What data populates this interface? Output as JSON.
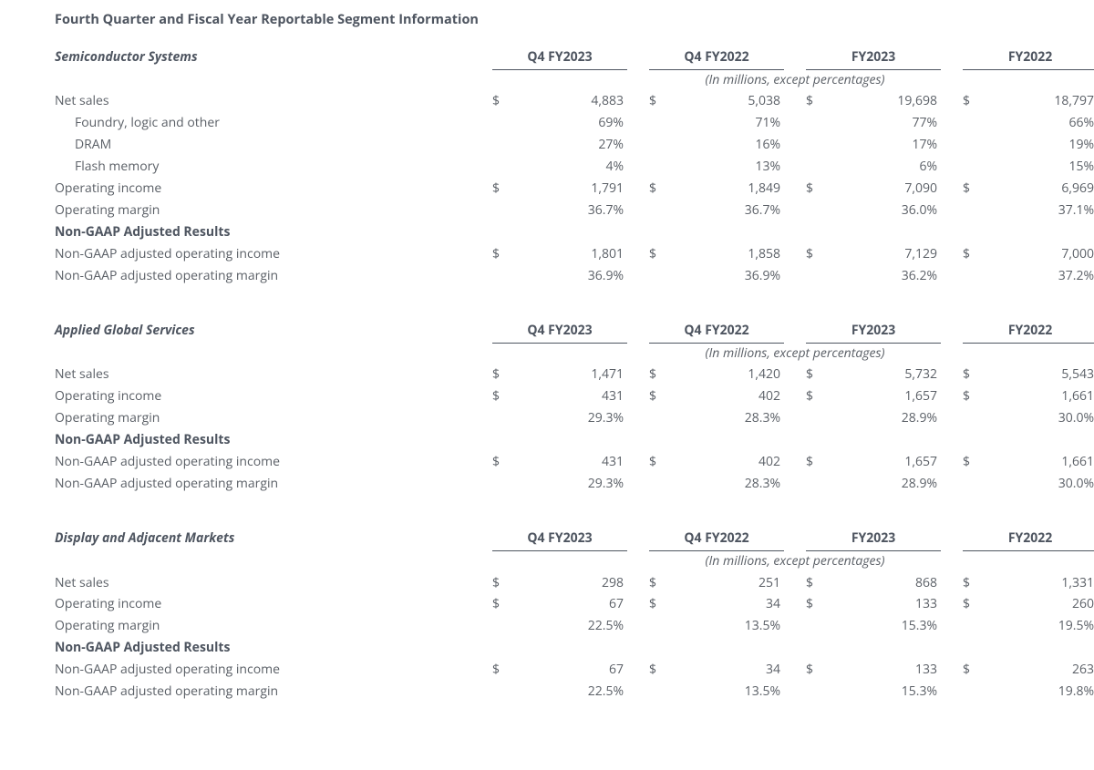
{
  "page_title": "Fourth Quarter and Fiscal Year Reportable Segment Information",
  "periods": [
    "Q4 FY2023",
    "Q4 FY2022",
    "FY2023",
    "FY2022"
  ],
  "subtitle": "(In millions, except percentages)",
  "currency_symbol": "$",
  "segments": [
    {
      "name": "Semiconductor Systems",
      "rows": [
        {
          "label": "Net sales",
          "indent": false,
          "dollar": true,
          "values": [
            "4,883",
            "5,038",
            "19,698",
            "18,797"
          ]
        },
        {
          "label": "Foundry, logic and other",
          "indent": true,
          "dollar": false,
          "values": [
            "69%",
            "71%",
            "77%",
            "66%"
          ]
        },
        {
          "label": "DRAM",
          "indent": true,
          "dollar": false,
          "values": [
            "27%",
            "16%",
            "17%",
            "19%"
          ]
        },
        {
          "label": "Flash memory",
          "indent": true,
          "dollar": false,
          "values": [
            "4%",
            "13%",
            "6%",
            "15%"
          ]
        },
        {
          "label": "Operating income",
          "indent": false,
          "dollar": true,
          "values": [
            "1,791",
            "1,849",
            "7,090",
            "6,969"
          ]
        },
        {
          "label": "Operating margin",
          "indent": false,
          "dollar": false,
          "values": [
            "36.7%",
            "36.7%",
            "36.0%",
            "37.1%"
          ]
        },
        {
          "label": "Non-GAAP Adjusted Results",
          "section": true
        },
        {
          "label": "Non-GAAP adjusted operating income",
          "indent": false,
          "dollar": true,
          "values": [
            "1,801",
            "1,858",
            "7,129",
            "7,000"
          ]
        },
        {
          "label": "Non-GAAP adjusted operating margin",
          "indent": false,
          "dollar": false,
          "values": [
            "36.9%",
            "36.9%",
            "36.2%",
            "37.2%"
          ]
        }
      ]
    },
    {
      "name": "Applied Global Services",
      "rows": [
        {
          "label": "Net sales",
          "indent": false,
          "dollar": true,
          "values": [
            "1,471",
            "1,420",
            "5,732",
            "5,543"
          ]
        },
        {
          "label": "Operating income",
          "indent": false,
          "dollar": true,
          "values": [
            "431",
            "402",
            "1,657",
            "1,661"
          ]
        },
        {
          "label": "Operating margin",
          "indent": false,
          "dollar": false,
          "values": [
            "29.3%",
            "28.3%",
            "28.9%",
            "30.0%"
          ]
        },
        {
          "label": "Non-GAAP Adjusted Results",
          "section": true
        },
        {
          "label": "Non-GAAP adjusted operating income",
          "indent": false,
          "dollar": true,
          "values": [
            "431",
            "402",
            "1,657",
            "1,661"
          ]
        },
        {
          "label": "Non-GAAP adjusted operating margin",
          "indent": false,
          "dollar": false,
          "values": [
            "29.3%",
            "28.3%",
            "28.9%",
            "30.0%"
          ]
        }
      ]
    },
    {
      "name": "Display and Adjacent Markets",
      "rows": [
        {
          "label": "Net sales",
          "indent": false,
          "dollar": true,
          "values": [
            "298",
            "251",
            "868",
            "1,331"
          ]
        },
        {
          "label": "Operating income",
          "indent": false,
          "dollar": true,
          "values": [
            "67",
            "34",
            "133",
            "260"
          ]
        },
        {
          "label": "Operating margin",
          "indent": false,
          "dollar": false,
          "values": [
            "22.5%",
            "13.5%",
            "15.3%",
            "19.5%"
          ]
        },
        {
          "label": "Non-GAAP Adjusted Results",
          "section": true
        },
        {
          "label": "Non-GAAP adjusted operating income",
          "indent": false,
          "dollar": true,
          "values": [
            "67",
            "34",
            "133",
            "263"
          ]
        },
        {
          "label": "Non-GAAP adjusted operating margin",
          "indent": false,
          "dollar": false,
          "values": [
            "22.5%",
            "13.5%",
            "15.3%",
            "19.8%"
          ]
        }
      ]
    }
  ]
}
